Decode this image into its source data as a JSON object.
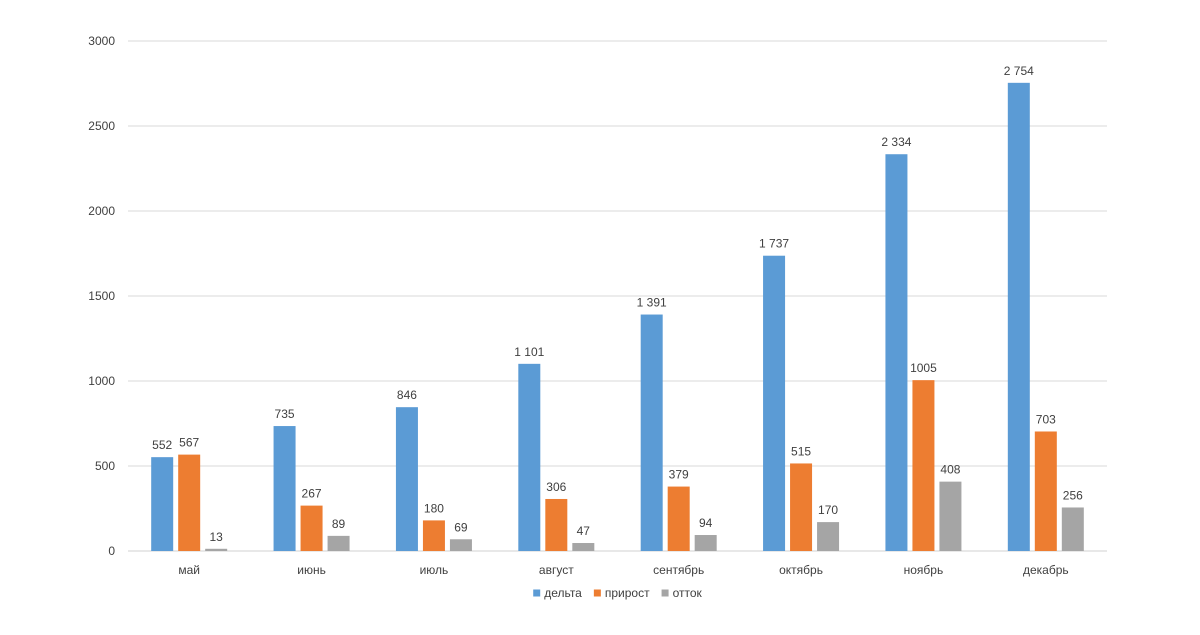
{
  "chart_data": {
    "type": "bar",
    "title": "",
    "xlabel": "",
    "ylabel": "",
    "ylim": [
      0,
      3000
    ],
    "yticks": [
      0,
      500,
      1000,
      1500,
      2000,
      2500,
      3000
    ],
    "grid": true,
    "legend_position": "bottom",
    "categories": [
      "май",
      "июнь",
      "июль",
      "август",
      "сентябрь",
      "октябрь",
      "ноябрь",
      "декабрь"
    ],
    "series": [
      {
        "name": "дельта",
        "color": "#5B9BD5",
        "values": [
          552,
          735,
          846,
          1101,
          1391,
          1737,
          2334,
          2754
        ],
        "labels": [
          "552",
          "735",
          "846",
          "1 101",
          "1 391",
          "1 737",
          "2 334",
          "2 754"
        ]
      },
      {
        "name": "прирост",
        "color": "#ED7D31",
        "values": [
          567,
          267,
          180,
          306,
          379,
          515,
          1005,
          703
        ],
        "labels": [
          "567",
          "267",
          "180",
          "306",
          "379",
          "515",
          "1005",
          "703"
        ]
      },
      {
        "name": "отток",
        "color": "#A5A5A5",
        "values": [
          13,
          89,
          69,
          47,
          94,
          170,
          408,
          256
        ],
        "labels": [
          "13",
          "89",
          "69",
          "47",
          "94",
          "170",
          "408",
          "256"
        ]
      }
    ]
  }
}
